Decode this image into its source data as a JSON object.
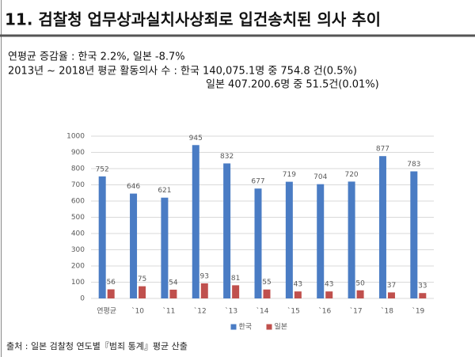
{
  "header": {
    "title": "11. 검찰청 업무상과실치사상죄로 입건송치된 의사 추이"
  },
  "notes": [
    "연평균 증감율 : 한국 2.2%, 일본 -8.7%",
    "2013년 ~ 2018년 평균 활동의사 수 : 한국 140,075.1명 중 754.8 건(0.5%)",
    "일본 407.200.6명 중 51.5건(0.01%)"
  ],
  "source": "출처 : 일본 검찰청 연도별『범죄 통계』평균 산출",
  "chart_data": {
    "type": "bar",
    "categories": [
      "연평균",
      "`10",
      "`11",
      "`12",
      "`13",
      "`14",
      "`15",
      "`16",
      "`17",
      "`18",
      "`19"
    ],
    "series": [
      {
        "name": "한국",
        "color": "#4a7cc4",
        "values": [
          752,
          646,
          621,
          945,
          832,
          677,
          719,
          704,
          720,
          877,
          783
        ]
      },
      {
        "name": "일본",
        "color": "#c0504d",
        "values": [
          56,
          75,
          54,
          93,
          81,
          55,
          43,
          43,
          50,
          37,
          33
        ]
      }
    ],
    "ylim": [
      0,
      1000
    ],
    "yticks": [
      0,
      100,
      200,
      300,
      400,
      500,
      600,
      700,
      800,
      900,
      1000
    ],
    "grid": true,
    "legend": "bottom"
  }
}
